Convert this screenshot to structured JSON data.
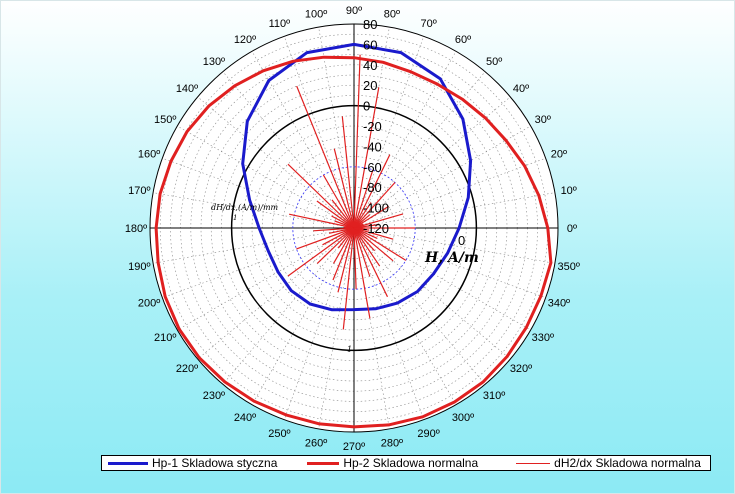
{
  "chart_data": {
    "type": "polar-line",
    "angle_unit": "deg",
    "angle_ticks": [
      "0º",
      "10º",
      "20º",
      "30º",
      "40º",
      "50º",
      "60º",
      "70º",
      "80º",
      "90º",
      "100º",
      "110º",
      "120º",
      "130º",
      "140º",
      "150º",
      "160º",
      "170º",
      "180º",
      "190º",
      "200º",
      "210º",
      "220º",
      "230º",
      "240º",
      "250º",
      "260º",
      "270º",
      "280º",
      "290º",
      "300º",
      "310º",
      "320º",
      "330º",
      "340º",
      "350º"
    ],
    "radial_ticks_upper": [
      "80",
      "60",
      "40",
      "20",
      "0",
      "-20",
      "-40",
      "-60",
      "-80",
      "-100",
      "-120"
    ],
    "radial_axis_labels": {
      "upper": "-",
      "left": "dH/dx,(A/m)/mm",
      "left_tick": "1",
      "right_value": "0",
      "right": "H, A/m",
      "lower_tick": "1"
    },
    "r_min": -120,
    "r_max": 80,
    "grid": true,
    "legend_position": "bottom",
    "series": [
      {
        "name": "Hp-1 Skladowa styczna",
        "color": "#1a1acc",
        "theta": [
          0,
          15,
          30,
          45,
          60,
          75,
          90,
          105,
          120,
          135,
          150,
          165,
          180,
          195,
          210,
          225,
          240,
          255,
          270,
          285,
          300,
          315,
          330,
          345,
          360
        ],
        "r": [
          -17,
          -4,
          12,
          31,
          49,
          58,
          60,
          58,
          47,
          28,
          6,
          -14,
          -27,
          -33,
          -34,
          -33,
          -34,
          -37,
          -40,
          -38,
          -35,
          -32,
          -30,
          -25,
          -17
        ]
      },
      {
        "name": "Hp-2 Skladowa normalna",
        "color": "#e02020",
        "theta": [
          0,
          10,
          20,
          30,
          40,
          50,
          60,
          70,
          80,
          90,
          100,
          110,
          120,
          130,
          140,
          150,
          160,
          170,
          180,
          190,
          200,
          210,
          220,
          230,
          240,
          250,
          260,
          270,
          280,
          290,
          300,
          310,
          320,
          330,
          340,
          350,
          360
        ],
        "r": [
          70,
          64,
          58,
          52,
          48,
          45,
          43,
          43,
          45,
          47,
          50,
          54,
          58,
          62,
          66,
          69,
          71,
          73,
          74,
          75,
          77,
          78,
          78,
          77,
          76,
          75,
          75,
          75,
          76,
          77,
          77,
          77,
          76,
          75,
          75,
          76,
          70
        ]
      },
      {
        "name": "dH2/dx Skladowa normalna",
        "color": "#e02020",
        "theta": [
          0,
          8,
          16,
          24,
          32,
          40,
          48,
          56,
          64,
          72,
          80,
          88,
          96,
          104,
          112,
          120,
          128,
          136,
          144,
          152,
          160,
          168,
          176,
          184,
          192,
          200,
          208,
          216,
          224,
          232,
          240,
          248,
          256,
          264,
          272,
          280,
          288,
          296,
          304,
          312,
          320,
          328,
          336,
          344,
          352
        ],
        "r": [
          -60,
          -95,
          -70,
          -110,
          -80,
          -100,
          -60,
          -90,
          -40,
          -60,
          20,
          50,
          -10,
          -40,
          30,
          -60,
          -85,
          -30,
          -75,
          -95,
          -100,
          -55,
          -110,
          -80,
          -95,
          -60,
          -85,
          -40,
          -70,
          -95,
          -80,
          -65,
          -55,
          -20,
          -60,
          -30,
          -70,
          -45,
          -75,
          -90,
          -70,
          -60,
          -95,
          -80,
          -105
        ]
      }
    ]
  }
}
